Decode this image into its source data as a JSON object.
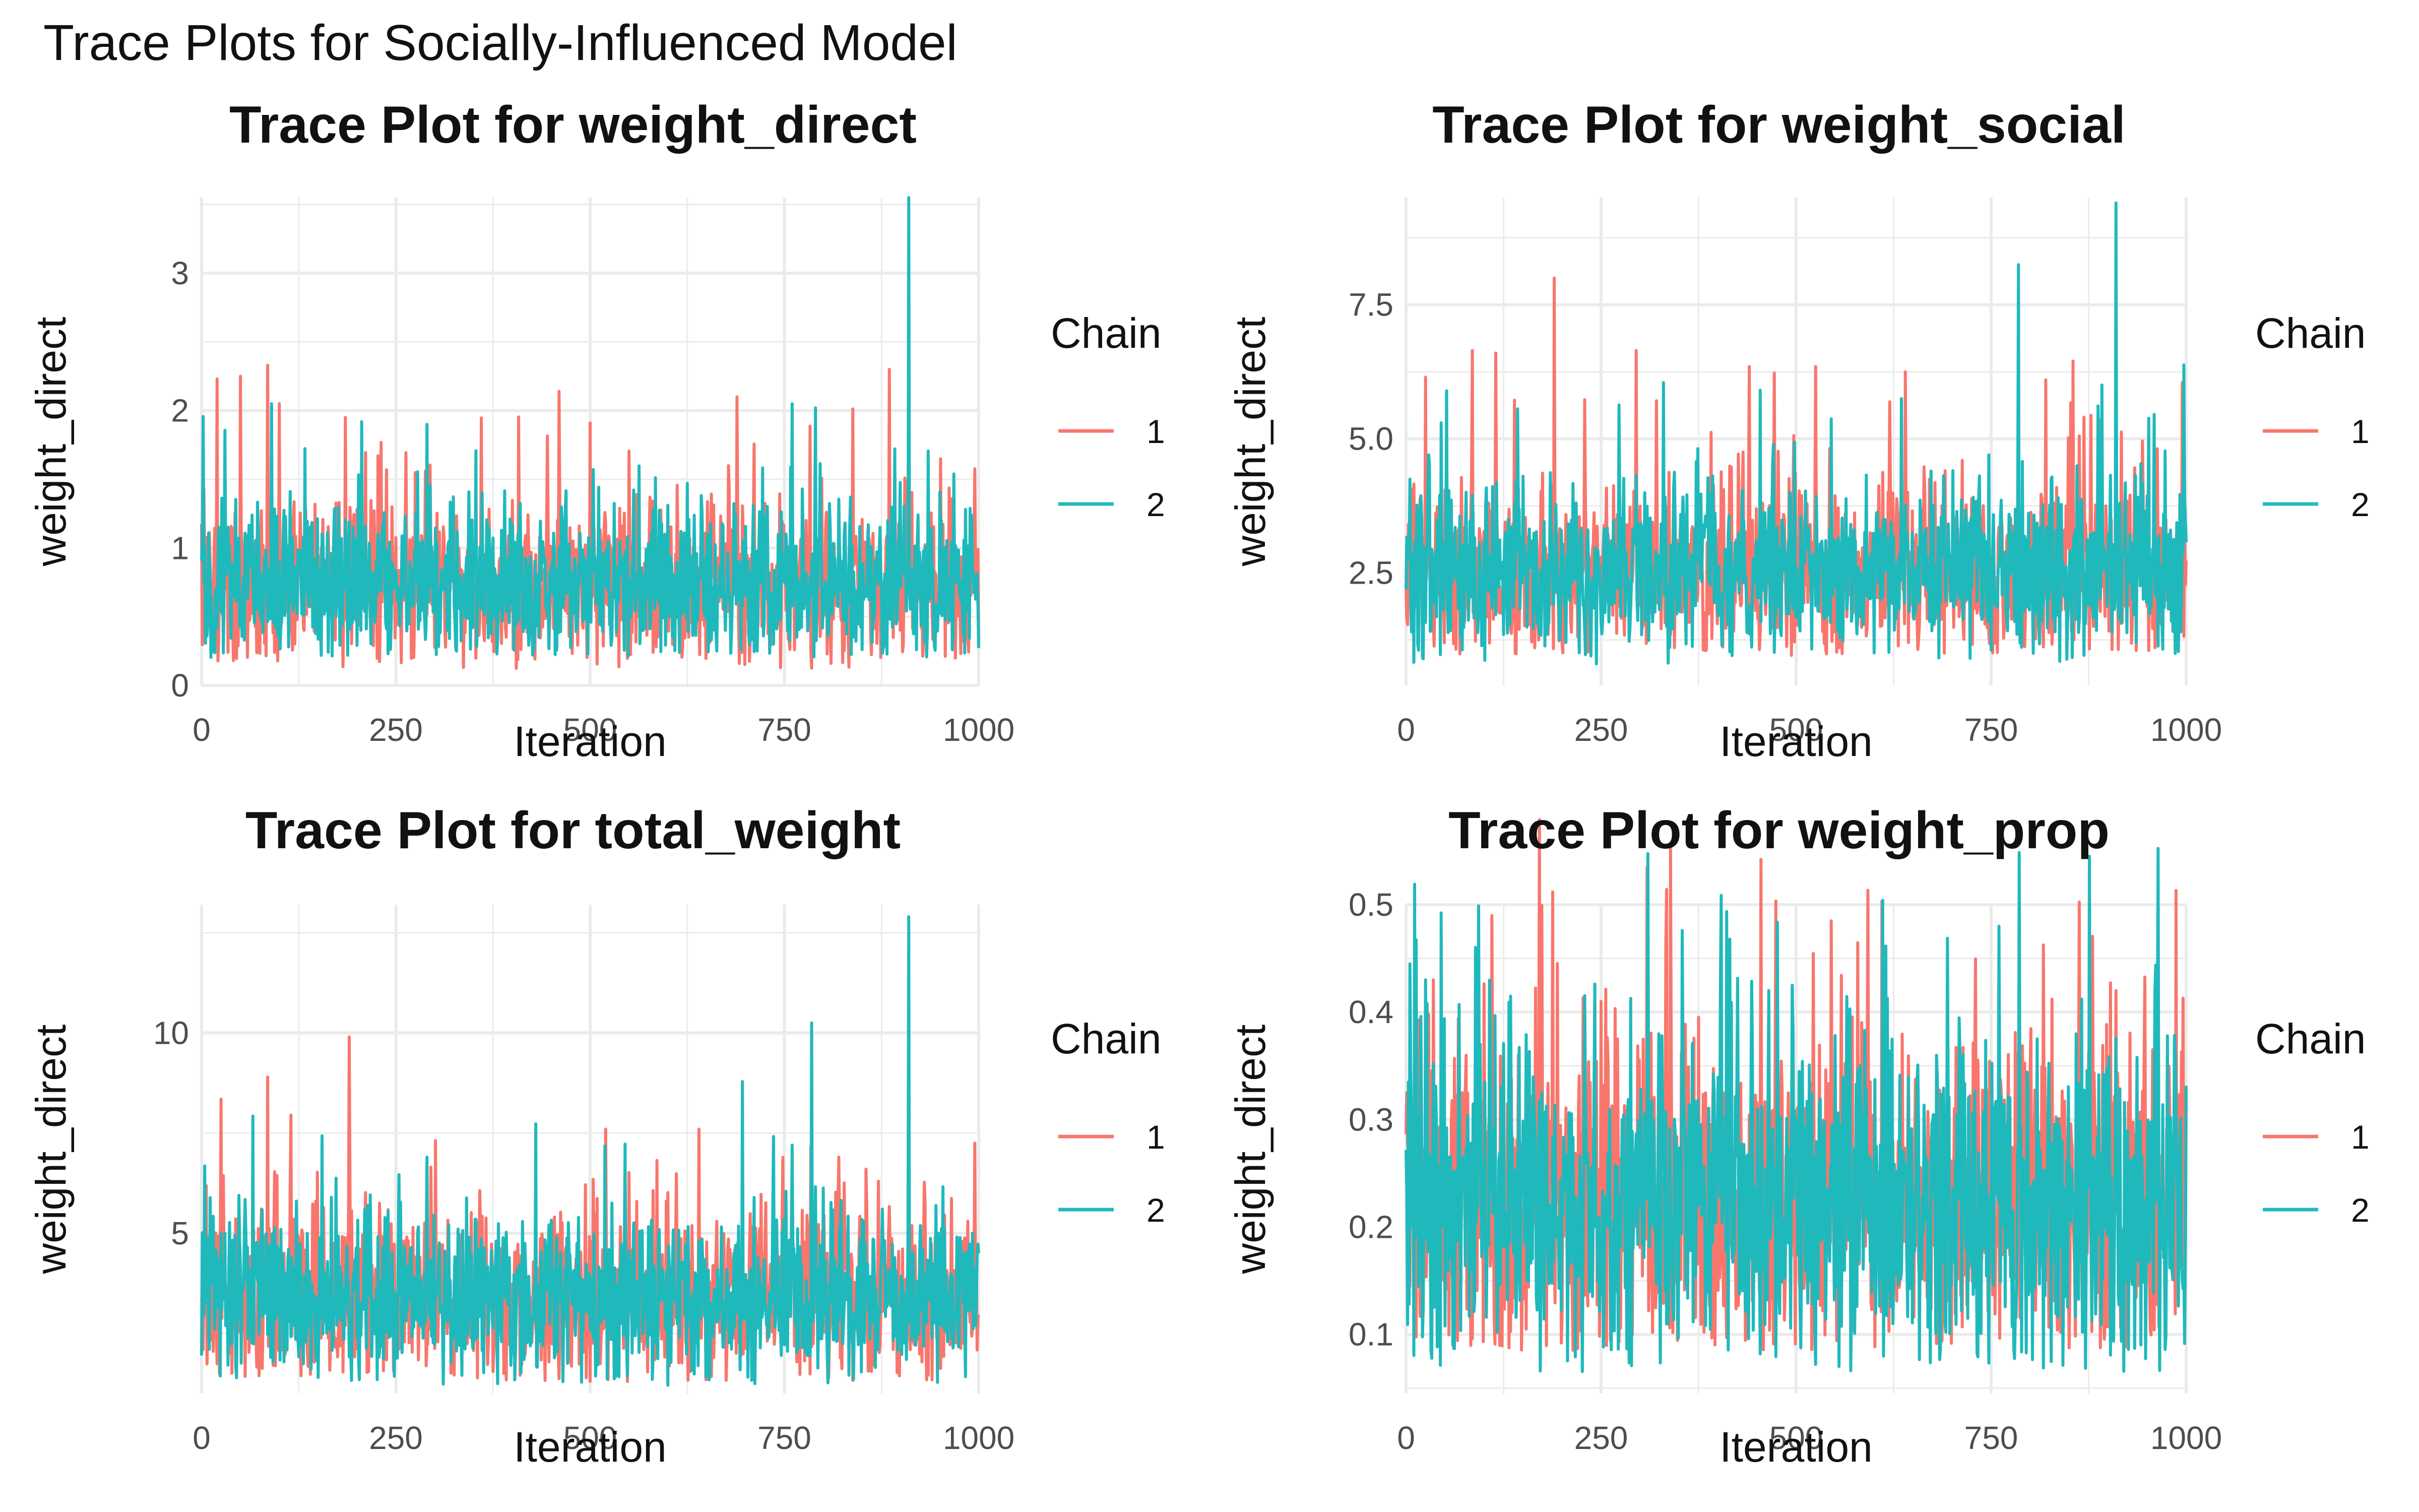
{
  "page_title": "Trace Plots for Socially-Influenced Model",
  "colors": {
    "chain1": "#F8766D",
    "chain2": "#1FB9BC",
    "grid": "#EBEBEB"
  },
  "chart_data": [
    {
      "type": "line",
      "title": "Trace Plot for weight_direct",
      "xlabel": "Iteration",
      "ylabel": "weight_direct",
      "xlim": [
        0,
        1000
      ],
      "ylim": [
        0,
        3.55
      ],
      "xticks": [
        0,
        250,
        500,
        750,
        1000
      ],
      "yticks": [
        0,
        1,
        2,
        3
      ],
      "yticklabels": [
        "0",
        "1",
        "2",
        "3"
      ],
      "legend": {
        "title": "Chain",
        "entries": [
          "1",
          "2"
        ],
        "position": "right"
      },
      "grid": true,
      "series": [
        {
          "name": "1",
          "values": {
            "base": 0.72,
            "noise": 0.28,
            "min": 0.12,
            "spikes": [
              [
                20,
                2.23
              ],
              [
                50,
                2.25
              ],
              [
                85,
                2.33
              ],
              [
                100,
                2.05
              ],
              [
                185,
                1.95
              ],
              [
                460,
                2.14
              ],
              [
                885,
                2.3
              ]
            ]
          }
        },
        {
          "name": "2",
          "values": {
            "base": 0.72,
            "noise": 0.28,
            "min": 0.2,
            "spikes": [
              [
                90,
                2.05
              ],
              [
                290,
                1.9
              ],
              [
                760,
                2.05
              ],
              [
                790,
                2.02
              ],
              [
                910,
                3.55
              ]
            ]
          }
        }
      ]
    },
    {
      "type": "line",
      "title": "Trace Plot for weight_social",
      "xlabel": "Iteration",
      "ylabel": "weight_direct",
      "xlim": [
        0,
        1000
      ],
      "ylim": [
        0.4,
        9.5
      ],
      "xticks": [
        0,
        250,
        500,
        750,
        1000
      ],
      "yticks": [
        2.5,
        5.0,
        7.5
      ],
      "yticklabels": [
        "2.5",
        "5.0",
        "7.5"
      ],
      "legend": {
        "title": "Chain",
        "entries": [
          "1",
          "2"
        ],
        "position": "right"
      },
      "grid": true,
      "series": [
        {
          "name": "1",
          "values": {
            "base": 2.5,
            "noise": 0.8,
            "min": 0.95,
            "spikes": [
              [
                25,
                6.15
              ],
              [
                85,
                6.65
              ],
              [
                115,
                6.6
              ],
              [
                190,
                8.0
              ],
              [
                295,
                6.65
              ],
              [
                440,
                6.35
              ],
              [
                525,
                6.35
              ],
              [
                640,
                6.25
              ],
              [
                820,
                6.1
              ],
              [
                855,
                6.45
              ],
              [
                995,
                6.05
              ]
            ]
          }
        },
        {
          "name": "2",
          "values": {
            "base": 2.5,
            "noise": 0.8,
            "min": 0.8,
            "spikes": [
              [
                45,
                5.3
              ],
              [
                330,
                6.05
              ],
              [
                635,
                5.75
              ],
              [
                785,
                8.25
              ],
              [
                910,
                9.4
              ]
            ]
          }
        }
      ]
    },
    {
      "type": "line",
      "title": "Trace Plot for total_weight",
      "xlabel": "Iteration",
      "ylabel": "weight_direct",
      "xlim": [
        0,
        1000
      ],
      "ylim": [
        1.0,
        13.2
      ],
      "xticks": [
        0,
        250,
        500,
        750,
        1000
      ],
      "yticks": [
        5,
        10
      ],
      "yticklabels": [
        "5",
        "10"
      ],
      "legend": {
        "title": "Chain",
        "entries": [
          "1",
          "2"
        ],
        "position": "right"
      },
      "grid": true,
      "series": [
        {
          "name": "1",
          "values": {
            "base": 3.3,
            "noise": 1.0,
            "min": 1.3,
            "spikes": [
              [
                25,
                8.35
              ],
              [
                85,
                8.9
              ],
              [
                115,
                7.95
              ],
              [
                190,
                9.9
              ],
              [
                295,
                6.65
              ],
              [
                520,
                7.6
              ],
              [
                640,
                7.6
              ],
              [
                820,
                6.9
              ],
              [
                855,
                6.6
              ],
              [
                995,
                7.25
              ]
            ]
          }
        },
        {
          "name": "2",
          "values": {
            "base": 3.3,
            "noise": 1.0,
            "min": 1.2,
            "spikes": [
              [
                290,
                6.9
              ],
              [
                760,
                7.2
              ],
              [
                785,
                10.25
              ],
              [
                910,
                12.9
              ]
            ]
          }
        }
      ]
    },
    {
      "type": "line",
      "title": "Trace Plot for weight_prop",
      "xlabel": "Iteration",
      "ylabel": "weight_direct",
      "xlim": [
        0,
        1000
      ],
      "ylim": [
        0.045,
        0.5
      ],
      "xticks": [
        0,
        250,
        500,
        750,
        1000
      ],
      "yticks": [
        0.1,
        0.2,
        0.3,
        0.4,
        0.5
      ],
      "yticklabels": [
        "0.1",
        "0.2",
        "0.3",
        "0.4",
        "0.5"
      ],
      "legend": {
        "title": "Chain",
        "entries": [
          "1",
          "2"
        ],
        "position": "right"
      },
      "grid": true,
      "series": [
        {
          "name": "1",
          "values": {
            "base": 0.22,
            "noise": 0.075,
            "min": 0.085,
            "spikes": [
              [
                35,
                0.43
              ],
              [
                250,
                0.41
              ],
              [
                545,
                0.485
              ],
              [
                910,
                0.42
              ]
            ]
          }
        },
        {
          "name": "2",
          "values": {
            "base": 0.22,
            "noise": 0.075,
            "min": 0.065,
            "spikes": [
              [
                5,
                0.445
              ],
              [
                25,
                0.43
              ],
              [
                415,
                0.468
              ],
              [
                495,
                0.425
              ],
              [
                960,
                0.422
              ]
            ]
          }
        }
      ]
    }
  ]
}
